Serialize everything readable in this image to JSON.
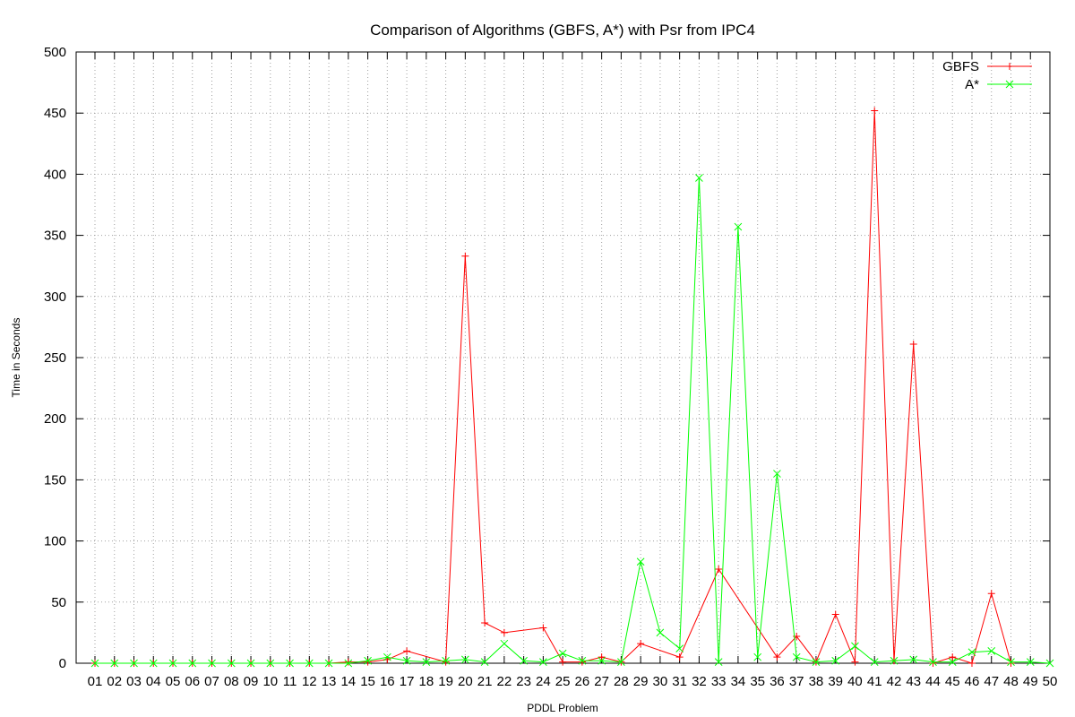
{
  "chart_data": {
    "type": "line",
    "title": "Comparison of Algorithms (GBFS, A*) with Psr from IPC4",
    "xlabel": "PDDL Problem",
    "ylabel": "Time in Seconds",
    "ylim": [
      0,
      500
    ],
    "yticks": [
      0,
      50,
      100,
      150,
      200,
      250,
      300,
      350,
      400,
      450,
      500
    ],
    "grid": true,
    "legend_position": "top-right",
    "categories": [
      "01",
      "02",
      "03",
      "04",
      "05",
      "06",
      "07",
      "08",
      "09",
      "10",
      "11",
      "12",
      "13",
      "14",
      "15",
      "16",
      "17",
      "18",
      "19",
      "20",
      "21",
      "22",
      "23",
      "24",
      "25",
      "26",
      "27",
      "28",
      "29",
      "30",
      "31",
      "32",
      "33",
      "34",
      "35",
      "36",
      "37",
      "38",
      "39",
      "40",
      "41",
      "42",
      "43",
      "44",
      "45",
      "46",
      "47",
      "48",
      "49",
      "50"
    ],
    "series": [
      {
        "name": "GBFS",
        "color": "#ff0000",
        "marker": "plus",
        "points": [
          [
            "01",
            0
          ],
          [
            "02",
            0
          ],
          [
            "03",
            0
          ],
          [
            "04",
            0
          ],
          [
            "05",
            0
          ],
          [
            "06",
            0
          ],
          [
            "07",
            0
          ],
          [
            "08",
            0
          ],
          [
            "09",
            0
          ],
          [
            "10",
            0
          ],
          [
            "11",
            0
          ],
          [
            "12",
            0
          ],
          [
            "13",
            0
          ],
          [
            "14",
            1
          ],
          [
            "15",
            1
          ],
          [
            "16",
            3
          ],
          [
            "17",
            10
          ],
          [
            "19",
            1
          ],
          [
            "20",
            333
          ],
          [
            "21",
            33
          ],
          [
            "22",
            25
          ],
          [
            "24",
            29
          ],
          [
            "25",
            1
          ],
          [
            "26",
            1
          ],
          [
            "27",
            5
          ],
          [
            "28",
            1
          ],
          [
            "29",
            16
          ],
          [
            "31",
            5
          ],
          [
            "33",
            77
          ],
          [
            "36",
            5
          ],
          [
            "37",
            22
          ],
          [
            "38",
            1
          ],
          [
            "39",
            40
          ],
          [
            "40",
            1
          ],
          [
            "41",
            452
          ],
          [
            "42",
            2
          ],
          [
            "43",
            261
          ],
          [
            "44",
            0
          ],
          [
            "45",
            5
          ],
          [
            "46",
            0
          ],
          [
            "47",
            57
          ],
          [
            "48",
            0
          ]
        ]
      },
      {
        "name": "A*",
        "color": "#00ff00",
        "marker": "cross",
        "points": [
          [
            "01",
            0
          ],
          [
            "02",
            0
          ],
          [
            "03",
            0
          ],
          [
            "04",
            0
          ],
          [
            "05",
            0
          ],
          [
            "06",
            0
          ],
          [
            "07",
            0
          ],
          [
            "08",
            0
          ],
          [
            "09",
            0
          ],
          [
            "10",
            0
          ],
          [
            "11",
            0
          ],
          [
            "12",
            0
          ],
          [
            "13",
            0
          ],
          [
            "14",
            0
          ],
          [
            "15",
            2
          ],
          [
            "16",
            5
          ],
          [
            "17",
            2
          ],
          [
            "18",
            1
          ],
          [
            "19",
            2
          ],
          [
            "20",
            3
          ],
          [
            "21",
            1
          ],
          [
            "22",
            16
          ],
          [
            "23",
            2
          ],
          [
            "24",
            1
          ],
          [
            "25",
            8
          ],
          [
            "26",
            2
          ],
          [
            "27",
            2
          ],
          [
            "28",
            1
          ],
          [
            "29",
            83
          ],
          [
            "30",
            25
          ],
          [
            "31",
            12
          ],
          [
            "32",
            397
          ],
          [
            "33",
            1
          ],
          [
            "34",
            357
          ],
          [
            "35",
            5
          ],
          [
            "36",
            155
          ],
          [
            "37",
            5
          ],
          [
            "38",
            1
          ],
          [
            "39",
            2
          ],
          [
            "40",
            14
          ],
          [
            "41",
            1
          ],
          [
            "42",
            2
          ],
          [
            "43",
            3
          ],
          [
            "44",
            1
          ],
          [
            "45",
            1
          ],
          [
            "46",
            9
          ],
          [
            "47",
            10
          ],
          [
            "48",
            1
          ],
          [
            "49",
            1
          ],
          [
            "50",
            0
          ]
        ]
      }
    ]
  }
}
